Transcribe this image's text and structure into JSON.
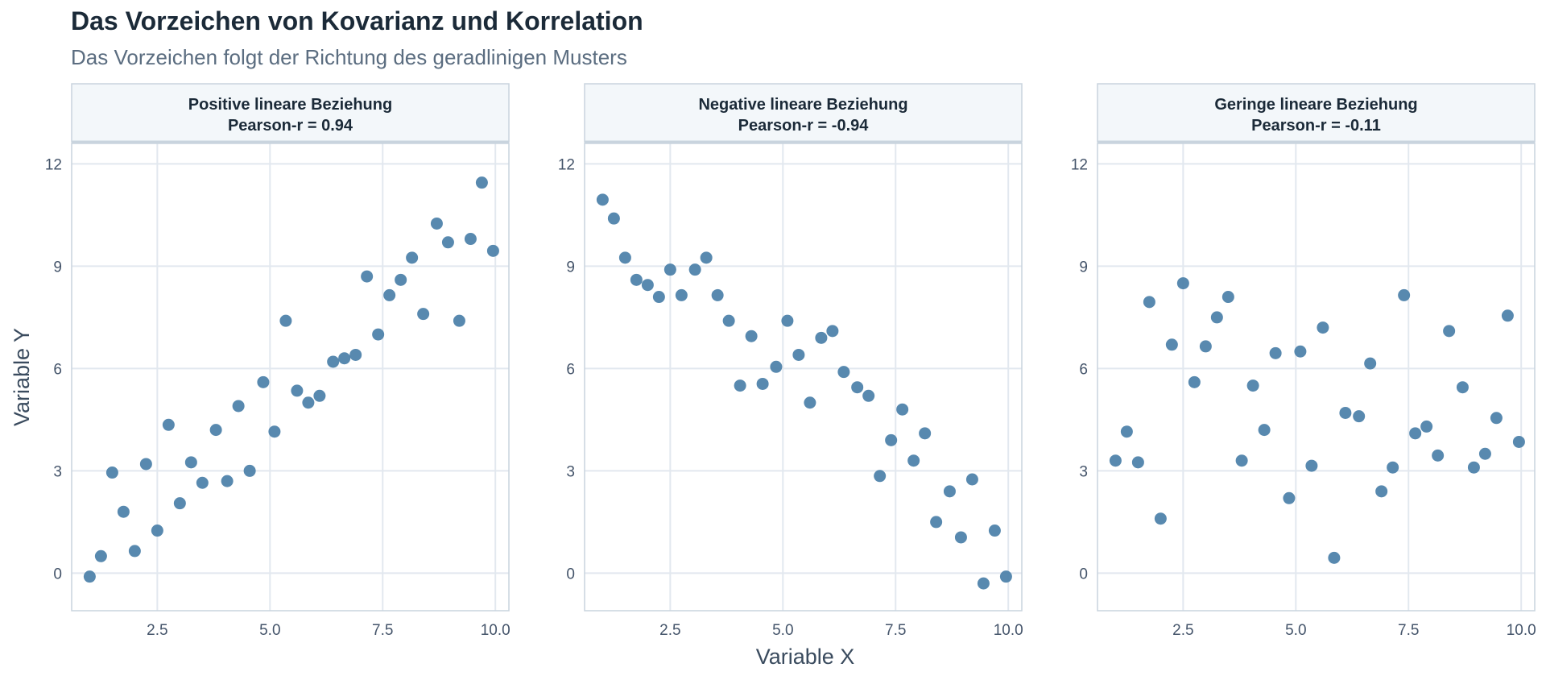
{
  "page": {
    "title": "Das Vorzeichen von Kovarianz und Korrelation",
    "subtitle": "Das Vorzeichen folgt der Richtung des geradlinigen Musters"
  },
  "colors": {
    "point": "#4a7fa8",
    "strip_bg": "#f3f7fa",
    "grid": "#e2e8ef",
    "border": "#c9d4de"
  },
  "chart_data": {
    "type": "scatter",
    "xlabel": "Variable X",
    "ylabel": "Variable Y",
    "xlim": [
      0.6,
      10.3
    ],
    "ylim": [
      -1.1,
      12.6
    ],
    "x_ticks": [
      2.5,
      5.0,
      7.5,
      10.0
    ],
    "x_tick_labels": [
      "2.5",
      "5.0",
      "7.5",
      "10.0"
    ],
    "y_ticks": [
      0,
      3,
      6,
      9,
      12
    ],
    "y_tick_labels": [
      "0",
      "3",
      "6",
      "9",
      "12"
    ],
    "grid": true,
    "legend": "none",
    "panels": [
      {
        "title": "Positive lineare Beziehung",
        "subtitle": "Pearson-r = 0.94",
        "x": [
          1.0,
          1.25,
          1.5,
          1.75,
          2.0,
          2.25,
          2.5,
          2.75,
          3.0,
          3.25,
          3.5,
          3.8,
          4.05,
          4.3,
          4.55,
          4.85,
          5.1,
          5.35,
          5.6,
          5.85,
          6.1,
          6.4,
          6.65,
          6.9,
          7.15,
          7.4,
          7.65,
          7.9,
          8.15,
          8.4,
          8.7,
          8.95,
          9.2,
          9.45,
          9.7,
          9.95
        ],
        "y": [
          -0.1,
          0.5,
          2.95,
          1.8,
          0.65,
          3.2,
          1.25,
          4.35,
          2.05,
          3.25,
          2.65,
          4.2,
          2.7,
          4.9,
          3.0,
          5.6,
          4.15,
          7.4,
          5.35,
          5.0,
          5.2,
          6.2,
          6.3,
          6.4,
          8.7,
          7.0,
          8.15,
          8.6,
          9.25,
          7.6,
          10.25,
          9.7,
          7.4,
          9.8,
          11.45,
          9.45
        ]
      },
      {
        "title": "Negative lineare Beziehung",
        "subtitle": "Pearson-r = -0.94",
        "x": [
          1.0,
          1.25,
          1.5,
          1.75,
          2.0,
          2.25,
          2.5,
          2.75,
          3.05,
          3.3,
          3.55,
          3.8,
          4.05,
          4.3,
          4.55,
          4.85,
          5.1,
          5.35,
          5.6,
          5.85,
          6.1,
          6.35,
          6.65,
          6.9,
          7.15,
          7.4,
          7.65,
          7.9,
          8.15,
          8.4,
          8.7,
          8.95,
          9.2,
          9.45,
          9.7,
          9.95
        ],
        "y": [
          10.95,
          10.4,
          9.25,
          8.6,
          8.45,
          8.1,
          8.9,
          8.15,
          8.9,
          9.25,
          8.15,
          7.4,
          5.5,
          6.95,
          5.55,
          6.05,
          7.4,
          6.4,
          5.0,
          6.9,
          7.1,
          5.9,
          5.45,
          5.2,
          2.85,
          3.9,
          4.8,
          3.3,
          4.1,
          1.5,
          2.4,
          1.05,
          2.75,
          -0.3,
          1.25,
          -0.1
        ]
      },
      {
        "title": "Geringe lineare Beziehung",
        "subtitle": "Pearson-r = -0.11",
        "x": [
          1.0,
          1.25,
          1.5,
          1.75,
          2.0,
          2.25,
          2.5,
          2.75,
          3.0,
          3.25,
          3.5,
          3.8,
          4.05,
          4.3,
          4.55,
          4.85,
          5.1,
          5.35,
          5.6,
          5.85,
          6.1,
          6.4,
          6.65,
          6.9,
          7.15,
          7.4,
          7.65,
          7.9,
          8.15,
          8.4,
          8.7,
          8.95,
          9.2,
          9.45,
          9.7,
          9.95
        ],
        "y": [
          3.3,
          4.15,
          3.25,
          7.95,
          1.6,
          6.7,
          8.5,
          5.6,
          6.65,
          7.5,
          8.1,
          3.3,
          5.5,
          4.2,
          6.45,
          2.2,
          6.5,
          3.15,
          7.2,
          0.45,
          4.7,
          4.6,
          6.15,
          2.4,
          3.1,
          8.15,
          4.1,
          4.3,
          3.45,
          7.1,
          5.45,
          3.1,
          3.5,
          4.55,
          7.55,
          3.85
        ]
      }
    ]
  }
}
